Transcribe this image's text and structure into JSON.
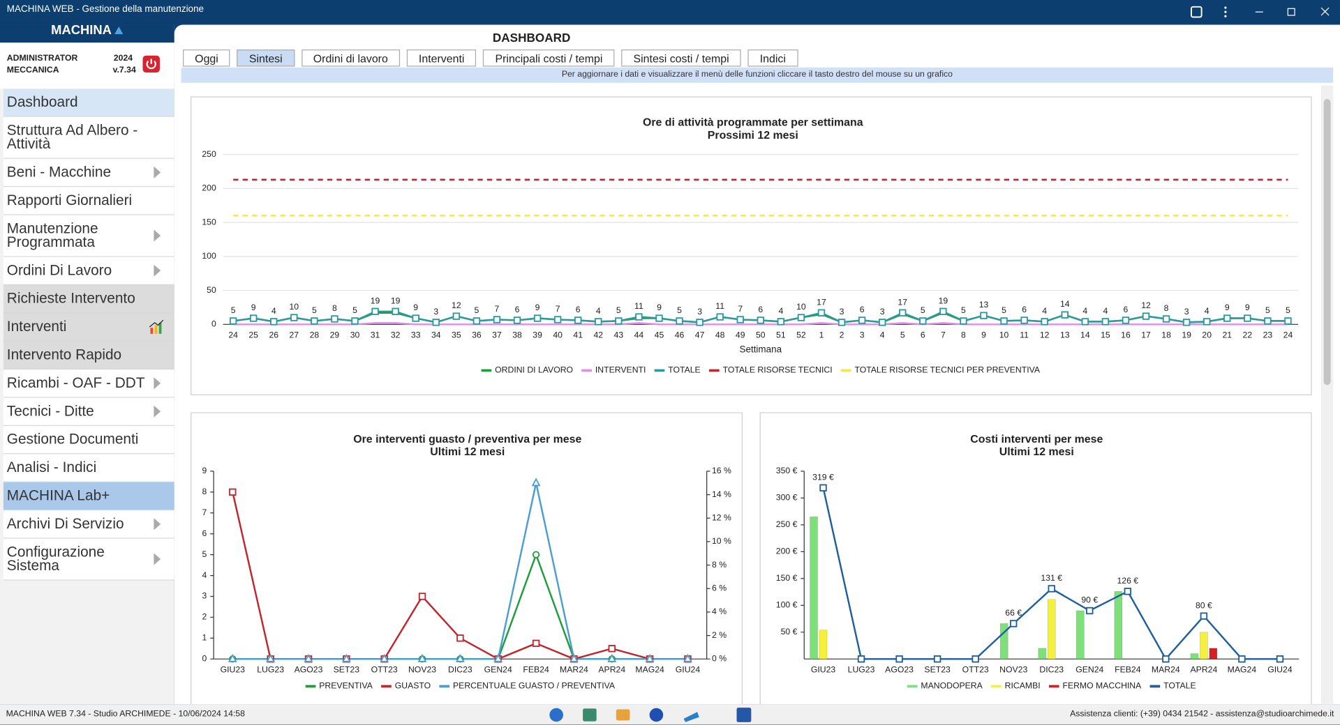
{
  "window": {
    "title": "MACHINA WEB - Gestione della manutenzione"
  },
  "sidebar": {
    "logo": "MACHINA",
    "user": "ADMINISTRATOR",
    "company": "MECCANICA",
    "year": "2024",
    "version": "v.7.34",
    "menu": [
      {
        "label": "Dashboard",
        "style": "active"
      },
      {
        "label": "Struttura Ad Albero - Attività"
      },
      {
        "label": "Beni - Macchine",
        "arrow": true
      },
      {
        "label": "Rapporti Giornalieri"
      },
      {
        "label": "Manutenzione Programmata",
        "arrow": true
      },
      {
        "label": "Ordini Di Lavoro",
        "arrow": true
      },
      {
        "label": "Richieste Intervento",
        "style": "grey"
      },
      {
        "label": "Interventi",
        "style": "grey",
        "icon": true
      },
      {
        "label": "Intervento Rapido",
        "style": "grey"
      },
      {
        "label": "Ricambi - OAF - DDT",
        "arrow": true
      },
      {
        "label": "Tecnici - Ditte",
        "arrow": true
      },
      {
        "label": "Gestione Documenti"
      },
      {
        "label": "Analisi - Indici"
      },
      {
        "label": "MACHINA Lab+",
        "style": "lab"
      },
      {
        "label": "Archivi Di Servizio",
        "arrow": true
      },
      {
        "label": "Configurazione Sistema",
        "arrow": true
      }
    ]
  },
  "page": {
    "title": "DASHBOARD",
    "active_tab": 1,
    "tabs": [
      "Oggi",
      "Sintesi",
      "Ordini di lavoro",
      "Interventi",
      "Principali costi / tempi",
      "Sintesi costi / tempi",
      "Indici"
    ],
    "hint": "Per aggiornare i dati e visualizzare il menù delle funzioni cliccare il tasto destro del mouse su un grafico"
  },
  "status": {
    "left": "MACHINA WEB 7.34 - Studio ARCHIMEDE - 10/06/2024 14:58",
    "right": "Assistenza clienti: (+39) 0434 21542 - assistenza@studioarchimede.it"
  },
  "chart_data": [
    {
      "type": "line",
      "title": "Ore di attività programmate per settimana",
      "subtitle": "Prossimi 12 mesi",
      "x_label": "Settimana",
      "grid": true,
      "categories": [
        "24",
        "25",
        "26",
        "27",
        "28",
        "29",
        "30",
        "31",
        "32",
        "33",
        "34",
        "35",
        "36",
        "37",
        "38",
        "39",
        "40",
        "41",
        "42",
        "43",
        "44",
        "45",
        "46",
        "47",
        "48",
        "49",
        "50",
        "51",
        "52",
        "1",
        "2",
        "3",
        "4",
        "5",
        "6",
        "7",
        "8",
        "9",
        "10",
        "11",
        "12",
        "13",
        "14",
        "15",
        "16",
        "17",
        "18",
        "19",
        "20",
        "21",
        "22",
        "23",
        "24"
      ],
      "ylim": [
        0,
        250
      ],
      "yticks": [
        0,
        50,
        100,
        150,
        200,
        250
      ],
      "series": [
        {
          "name": "ORDINI DI LAVORO",
          "color": "#1e9e3a",
          "values": [
            5,
            9,
            4,
            10,
            5,
            8,
            5,
            17,
            17,
            9,
            3,
            12,
            5,
            7,
            6,
            9,
            7,
            6,
            4,
            5,
            9,
            9,
            5,
            3,
            11,
            7,
            6,
            4,
            10,
            15,
            3,
            6,
            3,
            15,
            5,
            17,
            5,
            13,
            5,
            6,
            4,
            14,
            4,
            4,
            6,
            12,
            8,
            3,
            4,
            9,
            9,
            5,
            5
          ]
        },
        {
          "name": "INTERVENTI",
          "color": "#e08ce8",
          "values": [
            0,
            0,
            0,
            0,
            0,
            0,
            0,
            2,
            2,
            0,
            0,
            0,
            0,
            0,
            0,
            0,
            0,
            0,
            0,
            0,
            2,
            0,
            0,
            0,
            0,
            0,
            0,
            0,
            0,
            2,
            0,
            0,
            0,
            2,
            0,
            2,
            0,
            0,
            0,
            0,
            0,
            0,
            0,
            0,
            0,
            0,
            0,
            0,
            0,
            0,
            0,
            0,
            0
          ]
        },
        {
          "name": "TOTALE",
          "color": "#2a9a9e",
          "marker": "square",
          "labels": true,
          "values": [
            5,
            9,
            4,
            10,
            5,
            8,
            5,
            19,
            19,
            9,
            3,
            12,
            5,
            7,
            6,
            9,
            7,
            6,
            4,
            5,
            11,
            9,
            5,
            3,
            11,
            7,
            6,
            4,
            10,
            17,
            3,
            6,
            3,
            17,
            5,
            19,
            5,
            13,
            5,
            6,
            4,
            14,
            4,
            4,
            6,
            12,
            8,
            3,
            4,
            9,
            9,
            5,
            5
          ]
        },
        {
          "name": "TOTALE RISORSE TECNICI",
          "color": "#c0262d",
          "dash": true,
          "values": [
            213,
            213,
            213,
            213,
            213,
            213,
            213,
            213,
            213,
            213,
            213,
            213,
            213,
            213,
            213,
            213,
            213,
            213,
            213,
            213,
            213,
            213,
            213,
            213,
            213,
            213,
            213,
            213,
            213,
            213,
            213,
            213,
            213,
            213,
            213,
            213,
            213,
            213,
            213,
            213,
            213,
            213,
            213,
            213,
            213,
            213,
            213,
            213,
            213,
            213,
            213,
            213,
            213
          ]
        },
        {
          "name": "TOTALE RISORSE TECNICI PER PREVENTIVA",
          "color": "#f2e64a",
          "dash": true,
          "values": [
            160,
            160,
            160,
            160,
            160,
            160,
            160,
            160,
            160,
            160,
            160,
            160,
            160,
            160,
            160,
            160,
            160,
            160,
            160,
            160,
            160,
            160,
            160,
            160,
            160,
            160,
            160,
            160,
            160,
            160,
            160,
            160,
            160,
            160,
            160,
            160,
            160,
            160,
            160,
            160,
            160,
            160,
            160,
            160,
            160,
            160,
            160,
            160,
            160,
            160,
            160,
            160,
            160
          ]
        }
      ]
    },
    {
      "type": "line",
      "title": "Ore interventi guasto / preventiva per mese",
      "subtitle": "Ultimi 12 mesi",
      "categories": [
        "GIU23",
        "LUG23",
        "AGO23",
        "SET23",
        "OTT23",
        "NOV23",
        "DIC23",
        "GEN24",
        "FEB24",
        "MAR24",
        "APR24",
        "MAG24",
        "GIU24"
      ],
      "ylim": [
        0,
        9
      ],
      "yticks": [
        0,
        1,
        2,
        3,
        4,
        5,
        6,
        7,
        8,
        9
      ],
      "y2lim": [
        0,
        16
      ],
      "y2ticks": [
        {
          "value": 0,
          "label": "0 %"
        },
        {
          "value": 2,
          "label": "2 %"
        },
        {
          "value": 4,
          "label": "4 %"
        },
        {
          "value": 6,
          "label": "6 %"
        },
        {
          "value": 8,
          "label": "8 %"
        },
        {
          "value": 10,
          "label": "10 %"
        },
        {
          "value": 12,
          "label": "12 %"
        },
        {
          "value": 14,
          "label": "14 %"
        },
        {
          "value": 16,
          "label": "16 %"
        }
      ],
      "series": [
        {
          "name": "PREVENTIVA",
          "color": "#1e9e3a",
          "marker": "circle",
          "values": [
            0,
            0,
            0,
            0,
            0,
            0,
            0,
            0,
            5,
            0,
            0,
            0,
            0
          ]
        },
        {
          "name": "GUASTO",
          "color": "#c0262d",
          "marker": "square",
          "values": [
            8,
            0,
            0,
            0,
            0,
            3,
            1,
            0,
            0.75,
            0,
            0.5,
            0,
            0
          ]
        },
        {
          "name": "PERCENTUALE GUASTO / PREVENTIVA",
          "color": "#4a9fd1",
          "marker": "triangle",
          "axis": "y2",
          "values": [
            0,
            0,
            0,
            0,
            0,
            0,
            0,
            0,
            15,
            0,
            0,
            0,
            0
          ]
        }
      ]
    },
    {
      "type": "bar",
      "title": "Costi interventi per mese",
      "subtitle": "Ultimi 12 mesi",
      "categories": [
        "GIU23",
        "LUG23",
        "AGO23",
        "SET23",
        "OTT23",
        "NOV23",
        "DIC23",
        "GEN24",
        "FEB24",
        "MAR24",
        "APR24",
        "MAG24",
        "GIU24"
      ],
      "ylim": [
        0,
        350
      ],
      "yticks": [
        {
          "value": 50,
          "label": "50 €"
        },
        {
          "value": 100,
          "label": "100 €"
        },
        {
          "value": 150,
          "label": "150 €"
        },
        {
          "value": 200,
          "label": "200 €"
        },
        {
          "value": 250,
          "label": "250 €"
        },
        {
          "value": 300,
          "label": "300 €"
        },
        {
          "value": 350,
          "label": "350 €"
        }
      ],
      "series": [
        {
          "name": "MANODOPERA",
          "color": "#7ee07a",
          "type": "bar",
          "values": [
            265,
            0,
            0,
            0,
            0,
            66,
            20,
            90,
            126,
            0,
            10,
            0,
            0
          ]
        },
        {
          "name": "RICAMBI",
          "color": "#f4f03c",
          "type": "bar",
          "values": [
            54,
            0,
            0,
            0,
            0,
            0,
            111,
            0,
            0,
            0,
            50,
            0,
            0
          ]
        },
        {
          "name": "FERMO MACCHINA",
          "color": "#d42020",
          "type": "bar",
          "values": [
            0,
            0,
            0,
            0,
            0,
            0,
            0,
            0,
            0,
            0,
            20,
            0,
            0
          ]
        },
        {
          "name": "TOTALE",
          "color": "#1f5f9e",
          "type": "line",
          "marker": "square",
          "labels": true,
          "values": [
            319,
            0,
            0,
            0,
            0,
            66,
            131,
            90,
            126,
            0,
            80,
            0,
            0
          ],
          "value_labels": [
            "319 €",
            null,
            null,
            null,
            null,
            "66 €",
            "131 €",
            "90 €",
            "126 €",
            null,
            "80 €",
            null,
            null
          ]
        }
      ]
    }
  ]
}
